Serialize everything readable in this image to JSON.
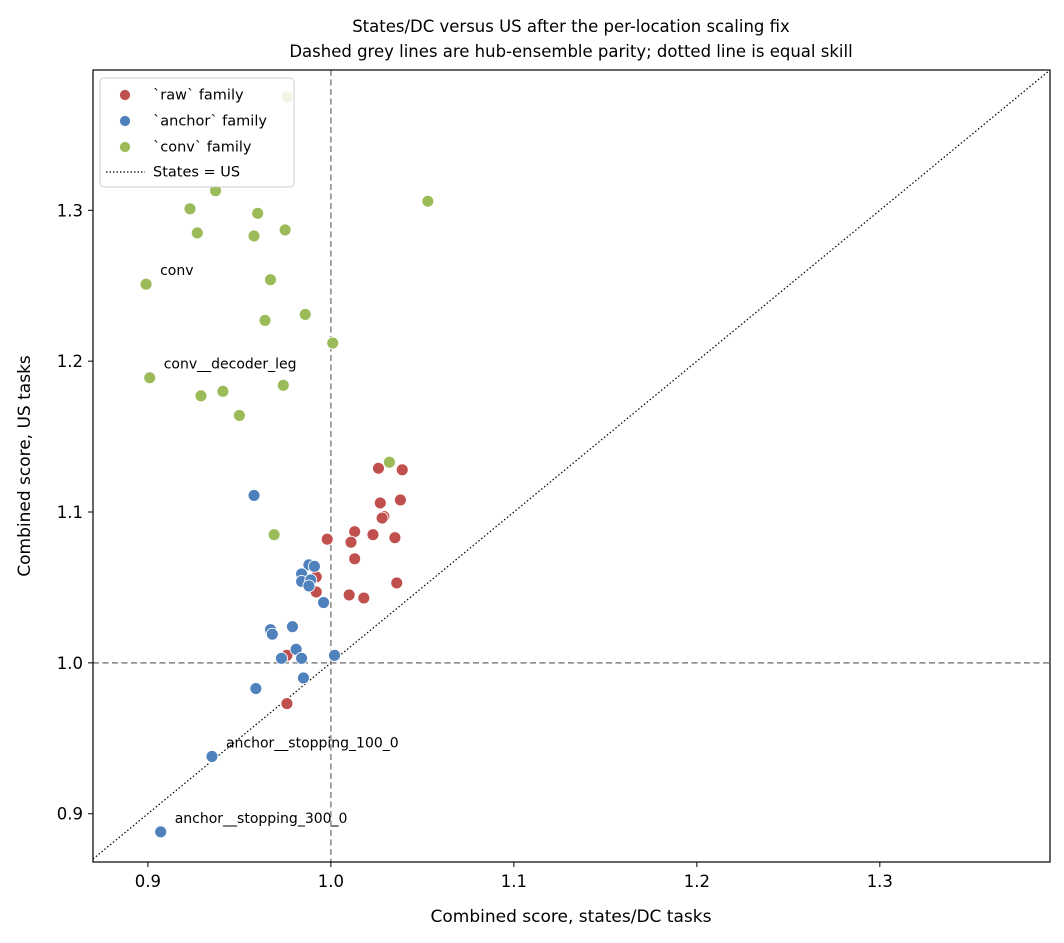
{
  "chart_data": {
    "type": "scatter",
    "title": "States/DC versus US after the per-location scaling fix",
    "subtitle": "Dashed grey lines are hub-ensemble parity; dotted line is equal skill",
    "xlabel": "Combined score, states/DC tasks",
    "ylabel": "Combined score, US tasks",
    "xlim": [
      0.87,
      1.393
    ],
    "ylim": [
      0.868,
      1.393
    ],
    "xticks": [
      0.9,
      1.0,
      1.1,
      1.2,
      1.3
    ],
    "yticks": [
      0.9,
      1.0,
      1.1,
      1.2,
      1.3
    ],
    "xtick_labels": [
      "0.9",
      "1.0",
      "1.1",
      "1.2",
      "1.3"
    ],
    "ytick_labels": [
      "0.9",
      "1.0",
      "1.1",
      "1.2",
      "1.3"
    ],
    "grid": false,
    "legend_position": "upper-left",
    "reference_lines": {
      "vertical_dashed_x": 1.0,
      "horizontal_dashed_y": 1.0,
      "diagonal_dotted_label": "States = US"
    },
    "series": [
      {
        "name": "`raw` family",
        "color": "#c0504d",
        "points": [
          [
            1.026,
            1.129
          ],
          [
            1.039,
            1.128
          ],
          [
            1.027,
            1.106
          ],
          [
            1.038,
            1.108
          ],
          [
            1.029,
            1.097
          ],
          [
            1.028,
            1.096
          ],
          [
            1.013,
            1.087
          ],
          [
            1.023,
            1.085
          ],
          [
            1.035,
            1.083
          ],
          [
            0.998,
            1.082
          ],
          [
            1.011,
            1.08
          ],
          [
            1.013,
            1.069
          ],
          [
            0.992,
            1.057
          ],
          [
            0.992,
            1.047
          ],
          [
            1.036,
            1.053
          ],
          [
            1.01,
            1.045
          ],
          [
            1.018,
            1.043
          ],
          [
            0.976,
            1.005
          ],
          [
            0.976,
            0.973
          ]
        ]
      },
      {
        "name": "`anchor` family",
        "color": "#4f81bd",
        "points": [
          [
            0.958,
            1.111
          ],
          [
            0.988,
            1.065
          ],
          [
            0.991,
            1.064
          ],
          [
            0.984,
            1.059
          ],
          [
            0.984,
            1.054
          ],
          [
            0.989,
            1.055
          ],
          [
            0.988,
            1.051
          ],
          [
            0.996,
            1.04
          ],
          [
            0.979,
            1.024
          ],
          [
            0.967,
            1.022
          ],
          [
            0.968,
            1.019
          ],
          [
            0.981,
            1.009
          ],
          [
            0.984,
            1.003
          ],
          [
            0.973,
            1.003
          ],
          [
            1.002,
            1.005
          ],
          [
            0.959,
            0.983
          ],
          [
            0.985,
            0.99
          ],
          [
            0.935,
            0.938
          ],
          [
            0.907,
            0.888
          ]
        ]
      },
      {
        "name": "`conv` family",
        "color": "#9bbb59",
        "points": [
          [
            0.976,
            1.375
          ],
          [
            0.937,
            1.313
          ],
          [
            1.053,
            1.306
          ],
          [
            0.923,
            1.301
          ],
          [
            0.96,
            1.298
          ],
          [
            0.927,
            1.285
          ],
          [
            0.975,
            1.287
          ],
          [
            0.958,
            1.283
          ],
          [
            0.967,
            1.254
          ],
          [
            0.899,
            1.251
          ],
          [
            0.964,
            1.227
          ],
          [
            0.986,
            1.231
          ],
          [
            1.001,
            1.212
          ],
          [
            0.901,
            1.189
          ],
          [
            0.974,
            1.184
          ],
          [
            0.941,
            1.18
          ],
          [
            0.929,
            1.177
          ],
          [
            0.95,
            1.164
          ],
          [
            1.032,
            1.133
          ],
          [
            0.969,
            1.085
          ]
        ]
      }
    ],
    "annotations": [
      {
        "text": "conv",
        "x": 0.899,
        "y": 1.251
      },
      {
        "text": "conv__decoder_leg",
        "x": 0.901,
        "y": 1.189
      },
      {
        "text": "anchor__stopping_100_0",
        "x": 0.935,
        "y": 0.938
      },
      {
        "text": "anchor__stopping_300_0",
        "x": 0.907,
        "y": 0.888
      }
    ]
  }
}
